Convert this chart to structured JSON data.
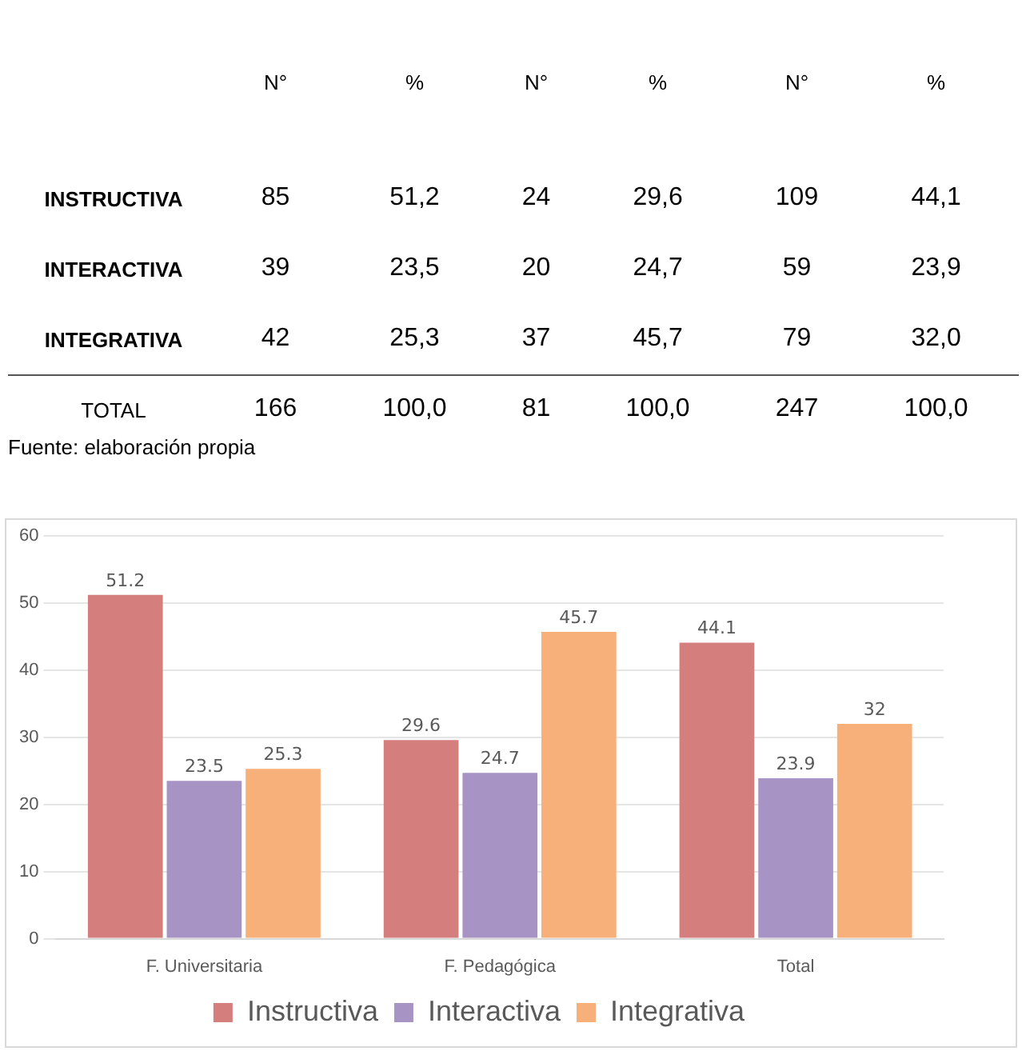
{
  "chart_data": [
    {
      "type": "other",
      "annotations": [
        "N°",
        "%",
        "N°",
        "%",
        "N°",
        "%",
        "INSTRUCTIVA",
        "85",
        "51,2",
        "24",
        "29,6",
        "109",
        "44,1",
        "INTERACTIVA",
        "39",
        "23,5",
        "20",
        "24,7",
        "59",
        "23,9",
        "INTEGRATIVA",
        "42",
        "25,3",
        "37",
        "45,7",
        "79",
        "32,0",
        "TOTAL",
        "166",
        "100,0",
        "81",
        "100,0",
        "247",
        "100,0",
        "Fuente: elaboración propia"
      ]
    },
    {
      "type": "bar",
      "categories": [
        "F. Universitaria",
        "F. Pedagógica",
        "Total"
      ],
      "series": [
        {
          "name": "Instructiva",
          "color": "#d47f7d",
          "values": [
            51.2,
            29.6,
            44.1
          ]
        },
        {
          "name": "Interactiva",
          "color": "#a894c4",
          "values": [
            23.5,
            24.7,
            23.9
          ]
        },
        {
          "name": "Integrativa",
          "color": "#f7b07a",
          "values": [
            25.3,
            45.7,
            32
          ]
        }
      ],
      "ylim": [
        0,
        60
      ],
      "yticks": [
        0,
        10,
        20,
        30,
        40,
        50,
        60
      ],
      "grid": "y",
      "data_labels": true,
      "legend": "bottom"
    }
  ]
}
